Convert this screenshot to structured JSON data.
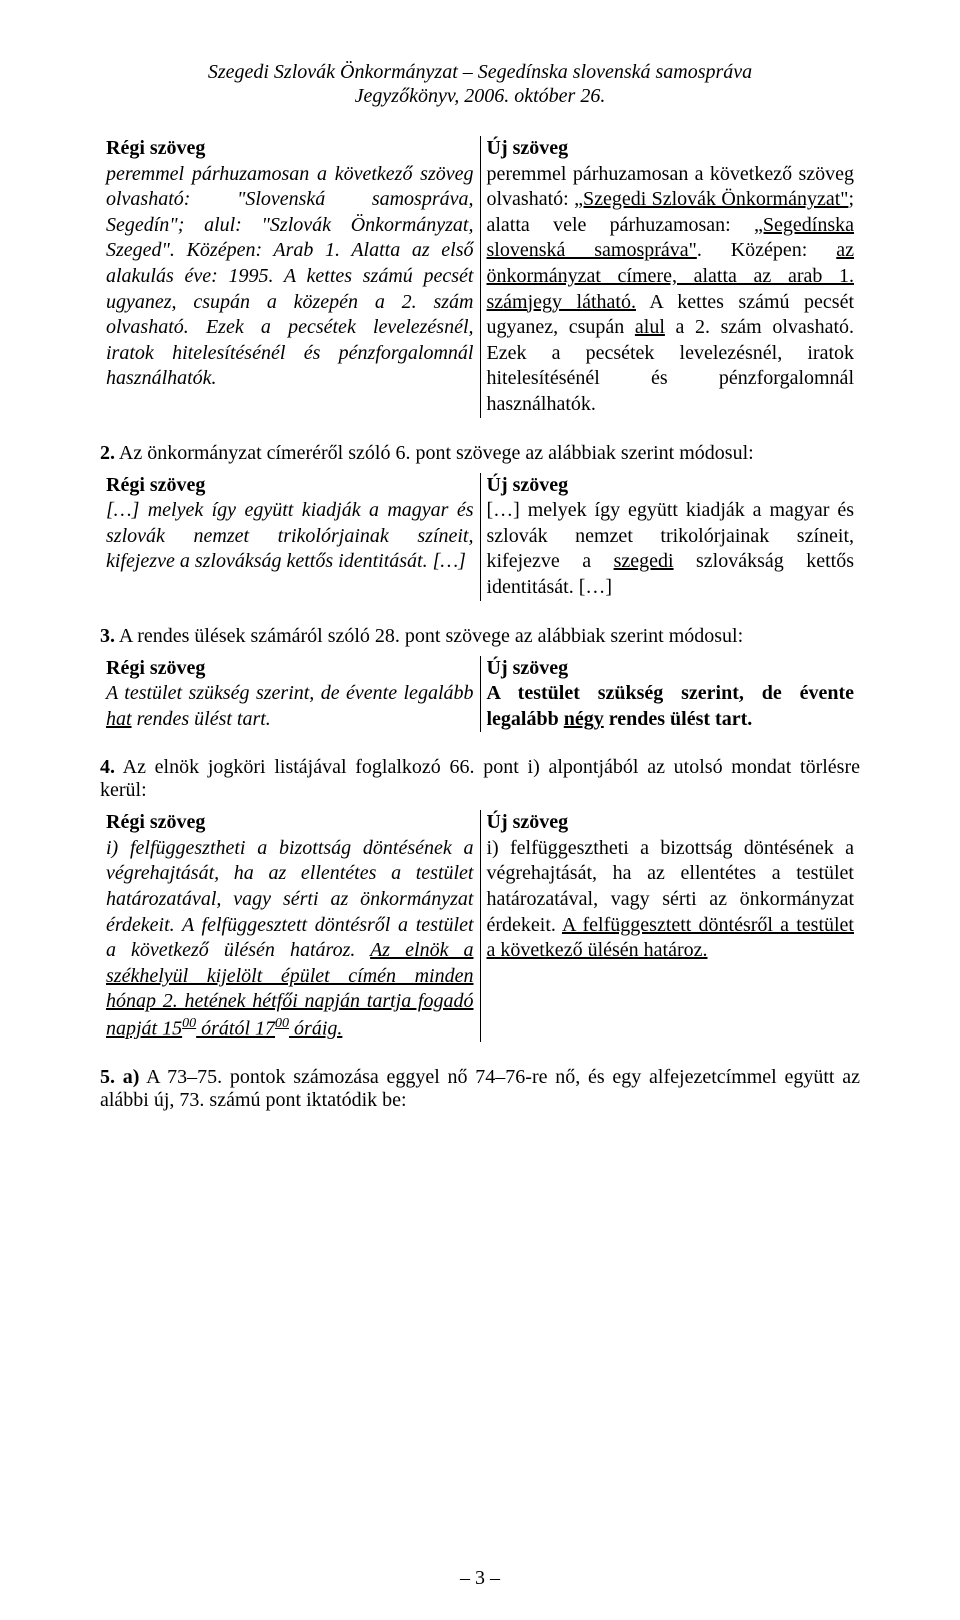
{
  "header": {
    "line1": "Szegedi Szlovák Önkormányzat – Segedínska slovenská samospráva",
    "line2": "Jegyzőkönyv, 2006. október 26."
  },
  "labels": {
    "old": "Régi szöveg",
    "new": "Új szöveg"
  },
  "block1": {
    "old_pre": "peremmel párhuzamosan a következő szöveg olvasható: \"Slovenská samospráva, Segedín\"; alul: \"Szlovák Önkormányzat, Szeged\". Középen: Arab 1. Alatta az első alakulás éve: 1995. A kettes számú pecsét ugyanez, csupán a közepén a 2. szám olvasható. Ezek a pecsétek levelezésnél, iratok hitelesítésénél és pénzforgalomnál használhatók.",
    "new_a": "peremmel párhuzamosan a következő szöveg olvasható: ",
    "new_b": "„Szegedi Szlovák Önkormányzat\"",
    "new_c": "; alatta vele párhuzamosan: ",
    "new_d": "„Segedínska slovenská samospráva\"",
    "new_e": ". Középen: ",
    "new_f": "az önkormányzat címere, alatta az arab 1. számjegy látható.",
    "new_g": " A kettes számú pecsét ugyanez, csupán ",
    "new_h": "alul",
    "new_i": " a 2. szám olvasható. Ezek a pecsétek levelezésnél, iratok hitelesítésénél és pénzforgalomnál használhatók."
  },
  "section2": {
    "intro_b": "2.",
    "intro_rest": " Az önkormányzat címeréről szóló 6. pont szövege az alábbiak szerint módosul:",
    "old": "[…] melyek így együtt kiadják a magyar és szlovák nemzet trikolórjainak színeit, kifejezve a szlovákság kettős identitását. […]",
    "new_a": "[…] melyek így együtt kiadják a magyar és szlovák nemzet trikolórjainak színeit, kifejezve a ",
    "new_b": "szegedi",
    "new_c": " szlovákság kettős identitását. […]"
  },
  "section3": {
    "intro_b": "3.",
    "intro_rest": " A rendes ülések számáról szóló 28. pont szövege az alábbiak szerint módosul:",
    "old_a": "A testület szükség szerint, de évente legalább ",
    "old_b": "hat",
    "old_c": " rendes ülést tart.",
    "new_a": "A testület szükség szerint, de évente legalább ",
    "new_b": "négy",
    "new_c": " rendes ülést tart."
  },
  "section4": {
    "intro_b": "4.",
    "intro_rest": " Az elnök jogköri listájával foglalkozó 66. pont i) alpontjából az utolsó mondat törlésre kerül:",
    "old_a": "i) felfüggesztheti a bizottság döntésének a végrehajtását, ha az ellentétes a testület határozatával, vagy sérti az önkormányzat érdekeit. A felfüggesztett döntésről a testület a következő ülésén határoz. ",
    "old_b1": "Az elnök a székhelyül kijelölt épület címén minden hónap 2. hetének hétfői napján tartja fogadó napját 15",
    "old_b_sup1": "00",
    "old_b2": " órától 17",
    "old_b_sup2": "00",
    "old_b3": " óráig.",
    "new_a": "i) felfüggesztheti a bizottság döntésének a végrehajtását, ha az ellentétes a testület határozatával, vagy sérti az önkormányzat érdekeit. ",
    "new_b": "A felfüggesztett döntésről a testület a következő ülésén határoz."
  },
  "section5": {
    "intro_b": "5. a)",
    "intro_rest": " A 73–75. pontok számozása eggyel nő 74–76-re nő, és egy alfejezetcímmel együtt az alábbi új, 73. számú pont iktatódik be:"
  },
  "pagenum": "– 3 –"
}
